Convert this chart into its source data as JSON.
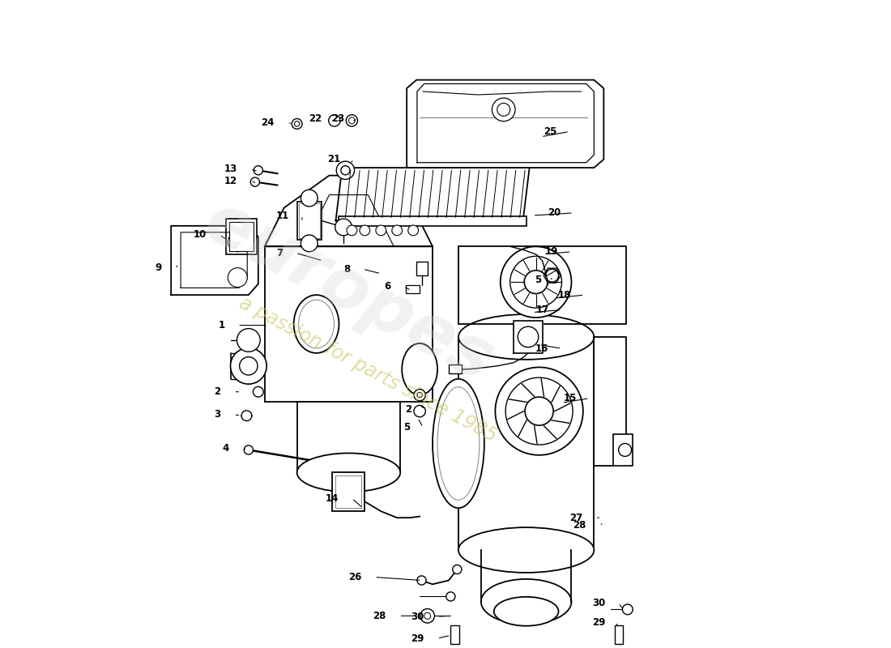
{
  "background_color": "#ffffff",
  "watermark_text1": "europes",
  "watermark_text2": "a passion for parts since 1985"
}
